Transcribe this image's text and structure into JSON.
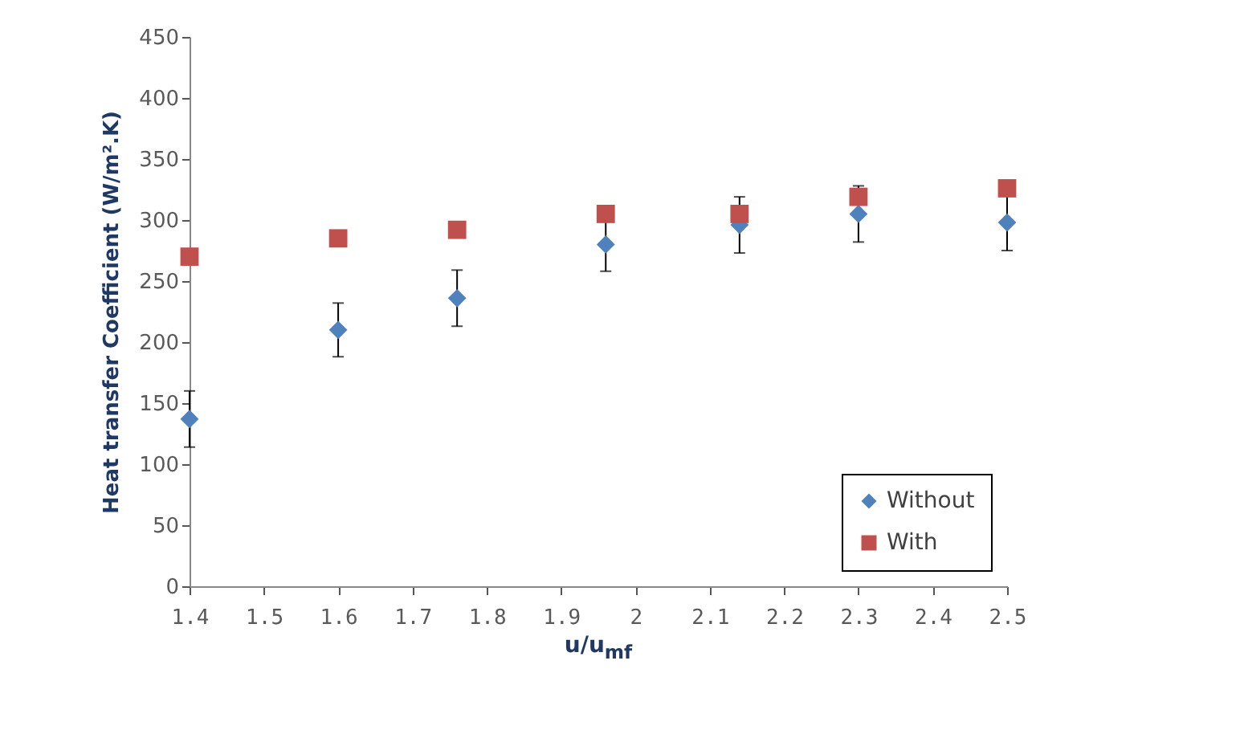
{
  "chart_data": {
    "type": "scatter",
    "xlabel": "u/u$_{mf}$",
    "ylabel": "Heat transfer Coefficient (W/m².K)",
    "x": [
      1.4,
      1.6,
      1.76,
      1.96,
      2.14,
      2.3,
      2.5
    ],
    "series": [
      {
        "name": "Without",
        "color": "#4f81bd",
        "marker": "diamond",
        "values": [
          137,
          210,
          236,
          280,
          296,
          305,
          298
        ],
        "errors": [
          23,
          22,
          23,
          22,
          23,
          23,
          23
        ]
      },
      {
        "name": "With",
        "color": "#c0504d",
        "marker": "square",
        "values": [
          270,
          285,
          292,
          305,
          305,
          319,
          326
        ]
      }
    ],
    "xlim": [
      1.4,
      2.5
    ],
    "xticks": [
      1.4,
      1.5,
      1.6,
      1.7,
      1.8,
      1.9,
      2,
      2.1,
      2.2,
      2.3,
      2.4,
      2.5
    ],
    "ylim": [
      0,
      450
    ],
    "yticks": [
      0,
      50,
      100,
      150,
      200,
      250,
      300,
      350,
      400,
      450
    ],
    "legend": "bottom right"
  }
}
